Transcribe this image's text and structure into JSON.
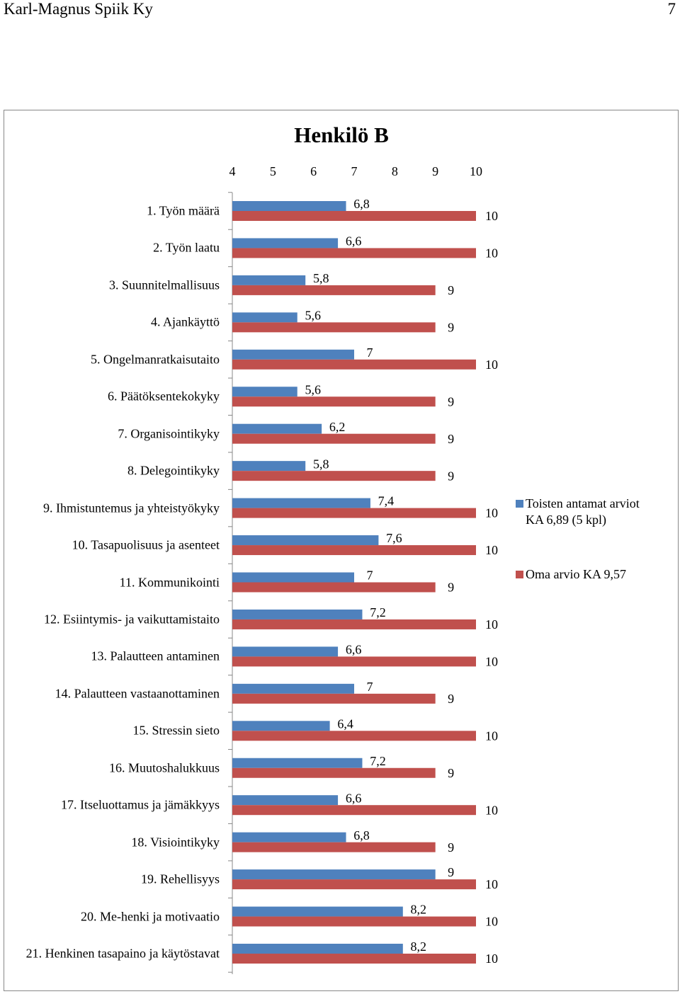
{
  "header": {
    "left": "Karl-Magnus Spiik Ky",
    "page_number": "7"
  },
  "chart_data": {
    "type": "bar",
    "orientation": "horizontal",
    "title": "Henkilö B",
    "categories": [
      "1. Työn määrä",
      "2. Työn laatu",
      "3. Suunnitelmallisuus",
      "4. Ajankäyttö",
      "5. Ongelmanratkaisutaito",
      "6. Päätöksentekokyky",
      "7. Organisointikyky",
      "8. Delegointikyky",
      "9. Ihmistuntemus ja yhteistyökyky",
      "10. Tasapuolisuus ja asenteet",
      "11. Kommunikointi",
      "12. Esiintymis- ja vaikuttamistaito",
      "13. Palautteen antaminen",
      "14. Palautteen vastaanottaminen",
      "15. Stressin sieto",
      "16. Muutoshalukkuus",
      "17. Itseluottamus ja jämäkkyys",
      "18. Visiointikyky",
      "19. Rehellisyys",
      "20. Me-henki ja motivaatio",
      "21. Henkinen tasapaino ja käytöstavat"
    ],
    "series": [
      {
        "name": "Toisten antamat arviot KA 6,89 (5 kpl)",
        "color": "#4f81bd",
        "values": [
          6.8,
          6.6,
          5.8,
          5.6,
          7,
          5.6,
          6.2,
          5.8,
          7.4,
          7.6,
          7,
          7.2,
          6.6,
          7,
          6.4,
          7.2,
          6.6,
          6.8,
          9,
          8.2,
          8.2
        ],
        "value_labels": [
          "6,8",
          "6,6",
          "5,8",
          "5,6",
          "7",
          "5,6",
          "6,2",
          "5,8",
          "7,4",
          "7,6",
          "7",
          "7,2",
          "6,6",
          "7",
          "6,4",
          "7,2",
          "6,6",
          "6,8",
          "9",
          "8,2",
          "8,2"
        ]
      },
      {
        "name": "Oma arvio KA 9,57",
        "color": "#c0504d",
        "values": [
          10,
          10,
          9,
          9,
          10,
          9,
          9,
          9,
          10,
          10,
          9,
          10,
          10,
          9,
          10,
          9,
          10,
          9,
          10,
          10,
          10
        ]
      }
    ],
    "xlim": [
      4,
      10
    ],
    "xticks": [
      4,
      5,
      6,
      7,
      8,
      9,
      10
    ],
    "legend": "right"
  }
}
